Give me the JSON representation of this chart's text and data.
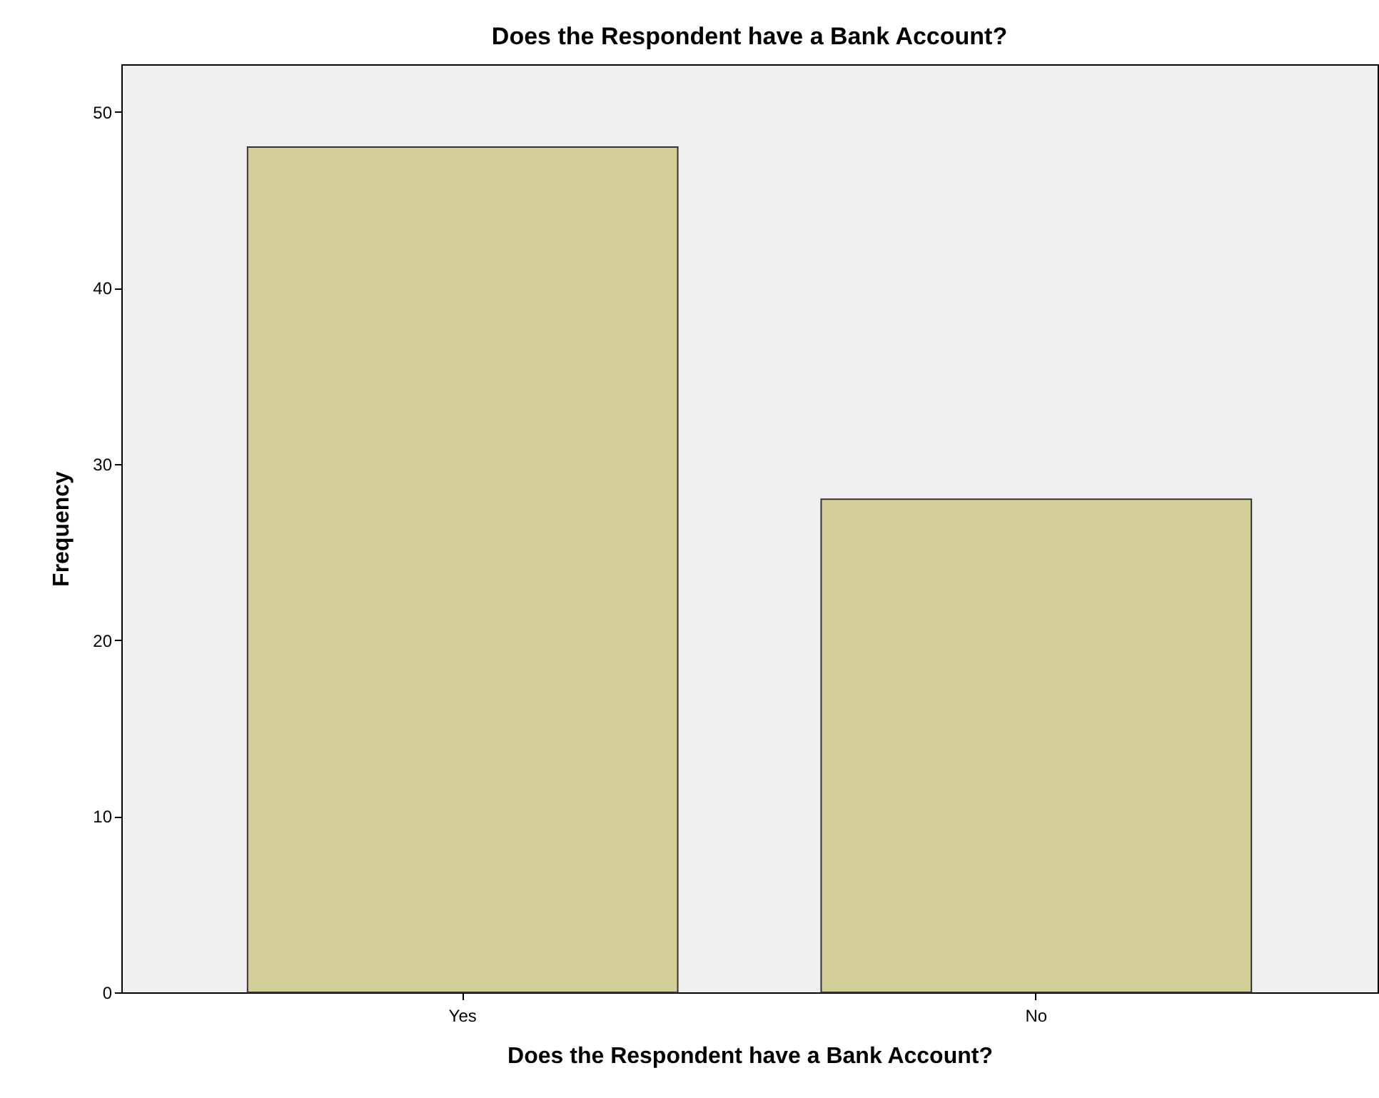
{
  "chart_data": {
    "type": "bar",
    "title": "Does the Respondent have a Bank Account?",
    "xlabel": "Does the Respondent have a Bank Account?",
    "ylabel": "Frequency",
    "categories": [
      "Yes",
      "No"
    ],
    "values": [
      48,
      28
    ],
    "color": "#d3ce98",
    "ylim": [
      0,
      52.7
    ],
    "yticks": [
      0,
      10,
      20,
      30,
      40,
      50
    ],
    "grid": false
  }
}
